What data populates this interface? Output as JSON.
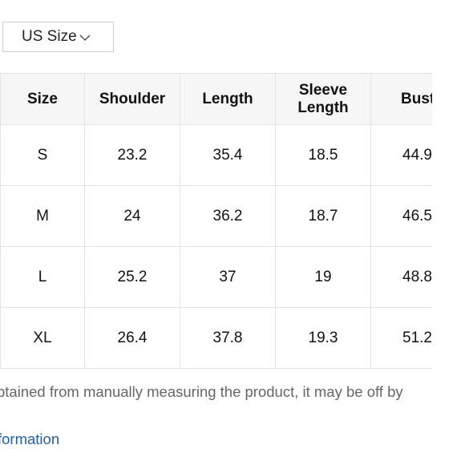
{
  "size_selector": {
    "selected": "US Size"
  },
  "size_table": {
    "headers": [
      "Size",
      "Shoulder",
      "Length",
      "Sleeve Length",
      "Bust"
    ],
    "rows": [
      [
        "S",
        "23.2",
        "35.4",
        "18.5",
        "44.9"
      ],
      [
        "M",
        "24",
        "36.2",
        "18.7",
        "46.5"
      ],
      [
        "L",
        "25.2",
        "37",
        "19",
        "48.8"
      ],
      [
        "XL",
        "26.4",
        "37.8",
        "19.3",
        "51.2"
      ]
    ]
  },
  "note": "btained from manually measuring the product, it may be off by",
  "info_link": "formation"
}
